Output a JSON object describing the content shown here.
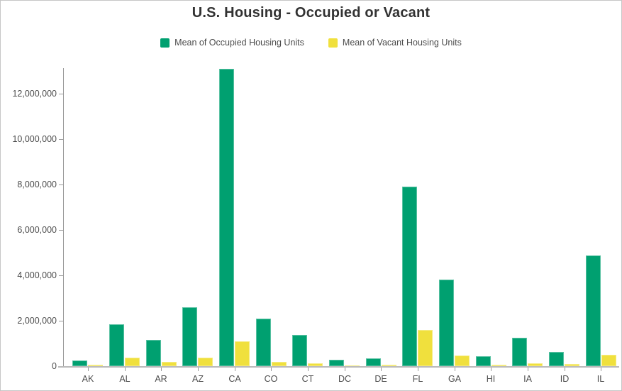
{
  "header": {
    "title": "U.S. Housing - Occupied or Vacant"
  },
  "chart_data": {
    "type": "bar",
    "title": "U.S. Housing - Occupied or Vacant",
    "categories": [
      "AK",
      "AL",
      "AR",
      "AZ",
      "CA",
      "CO",
      "CT",
      "DC",
      "DE",
      "FL",
      "GA",
      "HI",
      "IA",
      "ID",
      "IL"
    ],
    "series": [
      {
        "name": "Mean of Occupied Housing Units",
        "color": "#00a070",
        "values": [
          250000,
          1850000,
          1150000,
          2600000,
          13080000,
          2100000,
          1370000,
          270000,
          350000,
          7900000,
          3800000,
          450000,
          1250000,
          620000,
          4860000
        ]
      },
      {
        "name": "Mean of Vacant Housing Units",
        "color": "#f0e03d",
        "values": [
          70000,
          360000,
          180000,
          380000,
          1080000,
          200000,
          135000,
          30000,
          60000,
          1600000,
          480000,
          70000,
          130000,
          85000,
          500000
        ]
      }
    ],
    "xlabel": "",
    "ylabel": "",
    "ylim": [
      0,
      13125000
    ],
    "y_tick_values": [
      0,
      2000000,
      4000000,
      6000000,
      8000000,
      10000000,
      12000000
    ],
    "y_tick_labels": [
      "0",
      "2,000,000",
      "4,000,000",
      "6,000,000",
      "8,000,000",
      "10,000,000",
      "12,000,000"
    ],
    "grid": false,
    "legend_position": "top",
    "colors": {
      "occupied": "#00a070",
      "vacant": "#f0e03d",
      "axis": "#9b9b9b",
      "baseline": "#bababa",
      "tick_label": "#4c4c4c",
      "title": "#323232"
    }
  }
}
